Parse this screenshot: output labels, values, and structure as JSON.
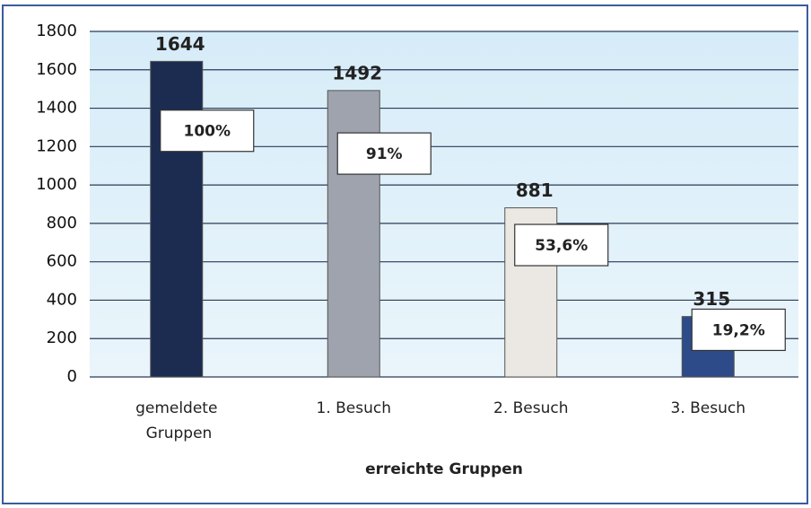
{
  "chart_data": {
    "type": "bar",
    "categories": [
      "gemeldete Gruppen",
      "1. Besuch",
      "2. Besuch",
      "3. Besuch"
    ],
    "values": [
      1644,
      1492,
      881,
      315
    ],
    "colors": [
      "#1c2b50",
      "#9ea3ad",
      "#ebe8e3",
      "#2d4b88"
    ],
    "percent_labels": [
      "100%",
      "91%",
      "53,6%",
      "19,2%"
    ],
    "x_label": "erreichte Gruppen",
    "ylim": [
      0,
      1800
    ],
    "yticks": [
      0,
      200,
      400,
      600,
      800,
      1000,
      1200,
      1400,
      1600,
      1800
    ],
    "grid": true
  }
}
